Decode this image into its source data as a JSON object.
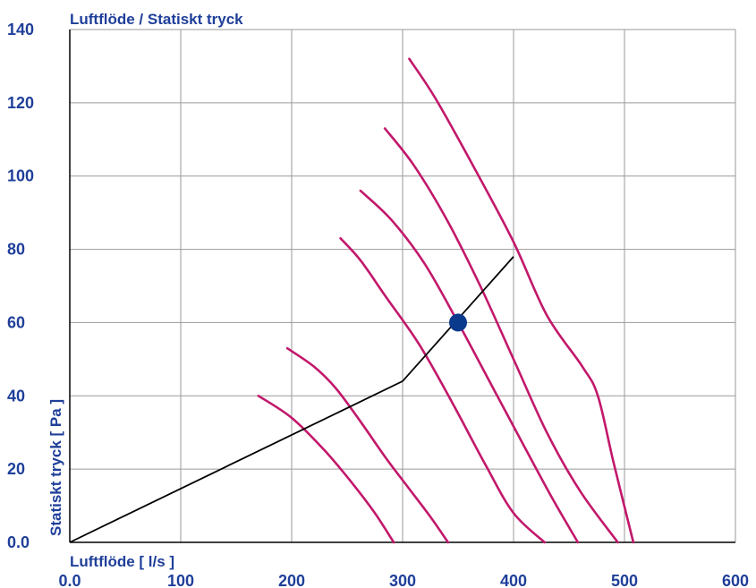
{
  "chart_data": {
    "type": "line",
    "title": "Luftflöde / Statiskt tryck",
    "xlabel": "Luftflöde [ l/s ]",
    "ylabel": "Statiskt tryck [ Pa ]",
    "xlim": [
      0,
      600
    ],
    "ylim": [
      0,
      140
    ],
    "xticks": [
      0,
      100,
      200,
      300,
      400,
      500,
      600
    ],
    "xtick_labels": [
      "0.0",
      "100",
      "200",
      "300",
      "400",
      "500",
      "600"
    ],
    "yticks": [
      0,
      20,
      40,
      60,
      80,
      100,
      120,
      140
    ],
    "ytick_labels": [
      "0.0",
      "20",
      "40",
      "60",
      "80",
      "100",
      "120",
      "140"
    ],
    "grid": true,
    "colors": {
      "text": "#1f3f99",
      "grid": "#9a9a9a",
      "axis": "#000000",
      "fan_curve": "#c2186b",
      "system_curve": "#000000",
      "operating_point": "#0a3a8c"
    },
    "fan_curves": [
      {
        "points": [
          [
            170,
            40
          ],
          [
            200,
            34
          ],
          [
            230,
            25
          ],
          [
            255,
            16
          ],
          [
            275,
            8
          ],
          [
            292,
            0
          ]
        ]
      },
      {
        "points": [
          [
            196,
            53
          ],
          [
            220,
            48
          ],
          [
            240,
            42
          ],
          [
            262,
            33
          ],
          [
            285,
            23
          ],
          [
            305,
            15
          ],
          [
            325,
            7
          ],
          [
            341,
            0
          ]
        ]
      },
      {
        "points": [
          [
            244,
            83
          ],
          [
            262,
            77
          ],
          [
            285,
            67
          ],
          [
            315,
            54
          ],
          [
            345,
            38
          ],
          [
            375,
            21
          ],
          [
            400,
            8
          ],
          [
            428,
            0
          ]
        ]
      },
      {
        "points": [
          [
            262,
            96
          ],
          [
            290,
            88
          ],
          [
            320,
            76
          ],
          [
            350,
            60
          ],
          [
            380,
            43
          ],
          [
            410,
            26
          ],
          [
            435,
            12
          ],
          [
            458,
            0
          ]
        ]
      },
      {
        "points": [
          [
            284,
            113
          ],
          [
            310,
            103
          ],
          [
            340,
            88
          ],
          [
            370,
            70
          ],
          [
            400,
            50
          ],
          [
            430,
            30
          ],
          [
            460,
            14
          ],
          [
            494,
            0
          ]
        ]
      },
      {
        "points": [
          [
            306,
            132
          ],
          [
            330,
            121
          ],
          [
            365,
            102
          ],
          [
            400,
            82
          ],
          [
            430,
            62
          ],
          [
            462,
            48
          ],
          [
            476,
            40
          ],
          [
            490,
            22
          ],
          [
            508,
            0
          ]
        ]
      }
    ],
    "system_curve": {
      "points": [
        [
          0,
          0
        ],
        [
          300,
          44
        ],
        [
          400,
          78
        ]
      ]
    },
    "operating_point": {
      "x": 350,
      "y": 60
    }
  }
}
